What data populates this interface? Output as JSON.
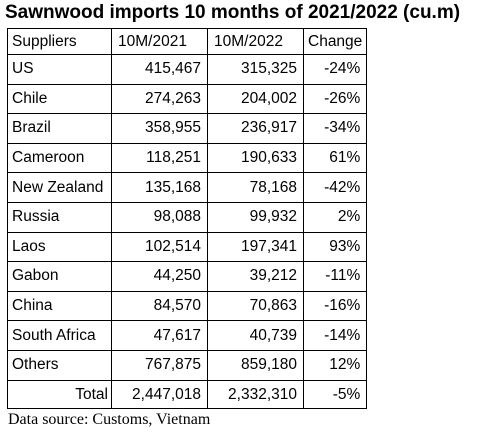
{
  "title": "Sawnwood imports 10 months of 2021/2022 (cu.m)",
  "table": {
    "headers": [
      "Suppliers",
      "10M/2021",
      "10M/2022",
      "Change"
    ],
    "rows": [
      [
        "US",
        "415,467",
        "315,325",
        "-24%"
      ],
      [
        "Chile",
        "274,263",
        "204,002",
        "-26%"
      ],
      [
        "Brazil",
        "358,955",
        "236,917",
        "-34%"
      ],
      [
        "Cameroon",
        "118,251",
        "190,633",
        "61%"
      ],
      [
        "New Zealand",
        "135,168",
        "78,168",
        "-42%"
      ],
      [
        "Russia",
        "98,088",
        "99,932",
        "2%"
      ],
      [
        "Laos",
        "102,514",
        "197,341",
        "93%"
      ],
      [
        "Gabon",
        "44,250",
        "39,212",
        "-11%"
      ],
      [
        "China",
        "84,570",
        "70,863",
        "-16%"
      ],
      [
        "South Africa",
        "47,617",
        "40,739",
        "-14%"
      ],
      [
        "Others",
        "767,875",
        "859,180",
        "12%"
      ]
    ],
    "total": [
      "Total",
      "2,447,018",
      "2,332,310",
      "-5%"
    ]
  },
  "source": "Data source: Customs, Vietnam"
}
